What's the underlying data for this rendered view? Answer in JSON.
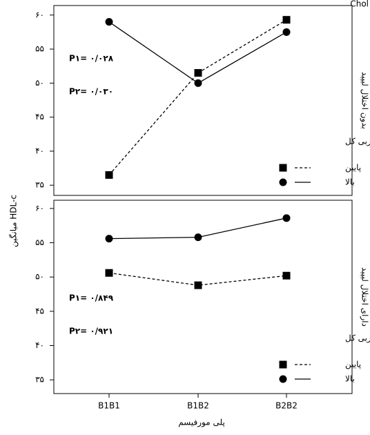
{
  "corner_text": "Chol",
  "chart_data": [
    {
      "type": "line",
      "ylabel": "میانگین HDL-c",
      "side_label": "بدون اختلال لیپید",
      "annotations": [
        "P۱= ۰/۰۲۸",
        "P۲= ۰/۰۳۰"
      ],
      "legend_title": "میانه دریافت چربی کل",
      "ylim": [
        33.5,
        61.4
      ],
      "yticks": [
        {
          "value": 35,
          "label": "۳۵"
        },
        {
          "value": 40,
          "label": "۴۰"
        },
        {
          "value": 45,
          "label": "۴۵"
        },
        {
          "value": 50,
          "label": "۵۰"
        },
        {
          "value": 55,
          "label": "۵۵"
        },
        {
          "value": 60,
          "label": "۶۰"
        }
      ],
      "series": [
        {
          "name": "پایین",
          "color": "#000000",
          "linestyle": "dashed",
          "marker": "square",
          "values": [
            36.5,
            51.5,
            59.3
          ]
        },
        {
          "name": "بالا",
          "color": "#000000",
          "linestyle": "solid",
          "marker": "circle",
          "values": [
            59.0,
            50.0,
            57.5
          ]
        }
      ]
    },
    {
      "type": "line",
      "side_label": "دارای اختلال لیپید",
      "annotations": [
        "P۱= ۰/۸۴۹",
        "P۲= ۰/۹۲۱"
      ],
      "legend_title": "میانه دریافت چربی کل",
      "xlabel": "پلی مورفیسم",
      "categories": [
        "B1B1",
        "B1B2",
        "B2B2"
      ],
      "ylim": [
        33.0,
        61.2
      ],
      "yticks": [
        {
          "value": 35,
          "label": "۳۵"
        },
        {
          "value": 40,
          "label": "۴۰"
        },
        {
          "value": 45,
          "label": "۴۵"
        },
        {
          "value": 50,
          "label": "۵۰"
        },
        {
          "value": 55,
          "label": "۵۵"
        },
        {
          "value": 60,
          "label": "۶۰"
        }
      ],
      "series": [
        {
          "name": "پایین",
          "color": "#000000",
          "linestyle": "dashed",
          "marker": "square",
          "values": [
            50.6,
            48.8,
            50.2
          ]
        },
        {
          "name": "بالا",
          "color": "#000000",
          "linestyle": "solid",
          "marker": "circle",
          "values": [
            55.6,
            55.8,
            58.6
          ]
        }
      ]
    }
  ]
}
